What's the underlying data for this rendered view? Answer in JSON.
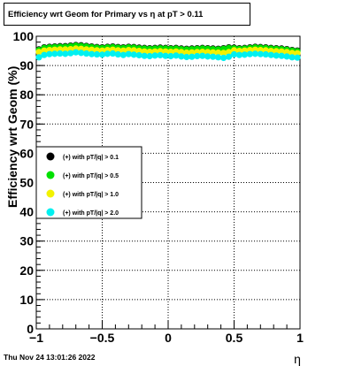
{
  "title": "Efficiency wrt Geom for Primary vs   η at pT > 0.11",
  "footer_timestamp": "Thu Nov 24 13:01:26 2022",
  "chart_data": {
    "type": "scatter",
    "xlabel": "η",
    "ylabel": "Efficiency wrt Geom (%)",
    "xlim": [
      -1,
      1
    ],
    "ylim": [
      0,
      100
    ],
    "x_ticks": [
      -1,
      -0.5,
      0,
      0.5,
      1
    ],
    "x_tick_labels": [
      "−1",
      "−0.5",
      "0",
      "0.5",
      "1"
    ],
    "y_ticks": [
      0,
      10,
      20,
      30,
      40,
      50,
      60,
      70,
      80,
      90,
      100
    ],
    "y_tick_labels": [
      "0",
      "10",
      "20",
      "30",
      "40",
      "50",
      "60",
      "70",
      "80",
      "90",
      "100"
    ],
    "grid": true,
    "legend_position": "middle-left",
    "x": [
      -0.98,
      -0.94,
      -0.9,
      -0.86,
      -0.82,
      -0.78,
      -0.74,
      -0.7,
      -0.66,
      -0.62,
      -0.58,
      -0.54,
      -0.5,
      -0.46,
      -0.42,
      -0.38,
      -0.34,
      -0.3,
      -0.26,
      -0.22,
      -0.18,
      -0.14,
      -0.1,
      -0.06,
      -0.02,
      0.02,
      0.06,
      0.1,
      0.14,
      0.18,
      0.22,
      0.26,
      0.3,
      0.34,
      0.38,
      0.42,
      0.46,
      0.5,
      0.54,
      0.58,
      0.62,
      0.66,
      0.7,
      0.74,
      0.78,
      0.82,
      0.86,
      0.9,
      0.94,
      0.98
    ],
    "series": [
      {
        "name": "(+) with pT/|q| > 0.1",
        "color": "#000000",
        "values": [
          95.5,
          96.2,
          96.4,
          96.5,
          96.6,
          96.6,
          96.8,
          97.0,
          96.9,
          96.7,
          96.5,
          96.3,
          96.2,
          96.4,
          96.5,
          96.3,
          96.2,
          96.4,
          96.3,
          96.1,
          96.0,
          95.9,
          96.0,
          96.1,
          96.0,
          95.9,
          96.0,
          95.8,
          95.7,
          95.8,
          95.9,
          96.0,
          95.9,
          95.8,
          95.7,
          95.9,
          96.2,
          96.1,
          95.9,
          96.0,
          96.2,
          96.4,
          96.3,
          96.2,
          96.0,
          95.9,
          95.8,
          95.6,
          95.3,
          95.1
        ]
      },
      {
        "name": "(+) with pT/|q| > 0.5",
        "color": "#00e000",
        "values": [
          95.3,
          96.0,
          96.2,
          96.3,
          96.4,
          96.4,
          96.6,
          96.8,
          96.7,
          96.5,
          96.3,
          96.1,
          96.0,
          96.2,
          96.3,
          96.1,
          96.0,
          96.2,
          96.1,
          95.9,
          95.8,
          95.7,
          95.8,
          95.9,
          95.8,
          95.7,
          95.8,
          95.6,
          95.5,
          95.6,
          95.7,
          95.8,
          95.7,
          95.6,
          95.5,
          95.7,
          96.0,
          95.9,
          95.7,
          95.8,
          96.0,
          96.2,
          96.1,
          96.0,
          95.8,
          95.7,
          95.6,
          95.4,
          95.1,
          94.9
        ]
      },
      {
        "name": "(+) with pT/|q| > 1.0",
        "color": "#f2f200",
        "values": [
          94.6,
          95.1,
          95.3,
          95.4,
          95.5,
          95.5,
          95.6,
          95.8,
          95.7,
          95.5,
          95.4,
          95.2,
          95.1,
          95.3,
          95.4,
          95.2,
          95.1,
          95.3,
          95.2,
          95.0,
          94.8,
          94.7,
          94.8,
          94.9,
          94.8,
          94.7,
          94.8,
          94.6,
          94.4,
          94.5,
          94.6,
          94.7,
          94.6,
          94.5,
          94.4,
          94.3,
          94.6,
          95.2,
          95.0,
          95.1,
          95.3,
          95.4,
          95.3,
          95.2,
          95.0,
          94.9,
          94.8,
          94.6,
          94.3,
          94.2
        ]
      },
      {
        "name": "(+) with pT/|q| > 2.0",
        "color": "#00f0f0",
        "values": [
          92.8,
          93.6,
          93.9,
          94.0,
          94.1,
          94.0,
          94.2,
          94.5,
          94.3,
          94.1,
          93.9,
          93.8,
          93.7,
          94.0,
          94.1,
          93.8,
          93.6,
          93.9,
          93.7,
          93.5,
          93.3,
          93.2,
          93.4,
          93.5,
          93.3,
          93.2,
          93.4,
          93.1,
          92.9,
          93.0,
          93.2,
          93.3,
          93.1,
          93.0,
          92.8,
          92.6,
          93.0,
          93.8,
          93.6,
          93.7,
          93.9,
          94.0,
          93.9,
          93.8,
          93.6,
          93.4,
          93.3,
          93.1,
          92.8,
          92.7
        ]
      }
    ]
  }
}
